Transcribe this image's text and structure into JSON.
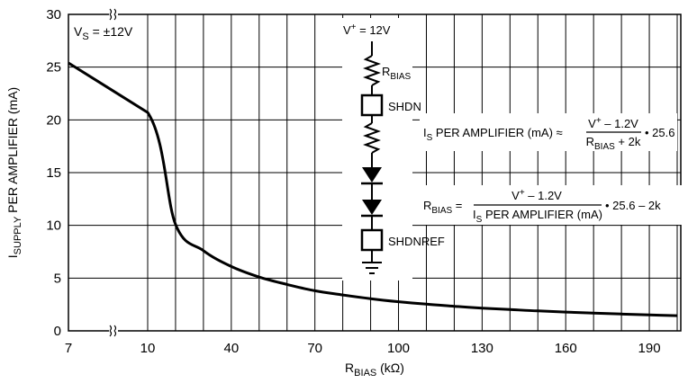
{
  "chart_data": {
    "type": "line",
    "title": "",
    "xlabel": {
      "main": "R",
      "sub": "BIAS",
      "unit": " (kΩ)"
    },
    "ylabel": {
      "main": "I",
      "sub": "SUPPLY",
      "rest": " PER AMPLIFIER (mA)"
    },
    "ylim": [
      0,
      30
    ],
    "yticks": [
      "0",
      "5",
      "10",
      "15",
      "20",
      "25",
      "30"
    ],
    "xticks": [
      "7",
      "10",
      "40",
      "70",
      "100",
      "130",
      "160",
      "190"
    ],
    "x_axis_break": "between 7 and 10 (x axis changes scale at 10)",
    "grid": true,
    "series": [
      {
        "x": [
          7,
          10,
          20,
          30,
          40,
          50,
          60,
          70,
          80,
          90,
          100,
          110,
          120,
          130,
          140,
          150,
          160,
          170,
          180,
          190,
          200
        ],
        "y": [
          25.4,
          20.7,
          10.1,
          7.6,
          6.1,
          5.1,
          4.4,
          3.8,
          3.4,
          3.05,
          2.76,
          2.53,
          2.33,
          2.16,
          2.02,
          1.89,
          1.78,
          1.68,
          1.59,
          1.51,
          1.44
        ]
      }
    ],
    "annotations": {
      "vs": {
        "main": "V",
        "sub": "S",
        "rest": " = ±12V"
      },
      "vplus": {
        "main": "V",
        "sup": "+",
        "rest": " = 12V"
      },
      "rbias": {
        "main": "R",
        "sub": "BIAS"
      },
      "shdn": "SHDN",
      "shdnref": "SHDNREF",
      "formula1": {
        "lhs_main": "I",
        "lhs_sub": "S",
        "lhs_rest": " PER AMPLIFIER (mA) ≈",
        "num_main": "V",
        "num_sup": "+",
        "num_rest": " – 1.2V",
        "den_main": "R",
        "den_sub": "BIAS",
        "den_rest": " + 2k",
        "tail": "• 25.6"
      },
      "formula2": {
        "lhs_main": "R",
        "lhs_sub": "BIAS",
        "lhs_rest": " =",
        "num_main": "V",
        "num_sup": "+",
        "num_rest": " – 1.2V",
        "den_main": "I",
        "den_sub": "S",
        "den_rest": " PER AMPLIFIER (mA)",
        "tail": "• 25.6 – 2k"
      }
    }
  }
}
